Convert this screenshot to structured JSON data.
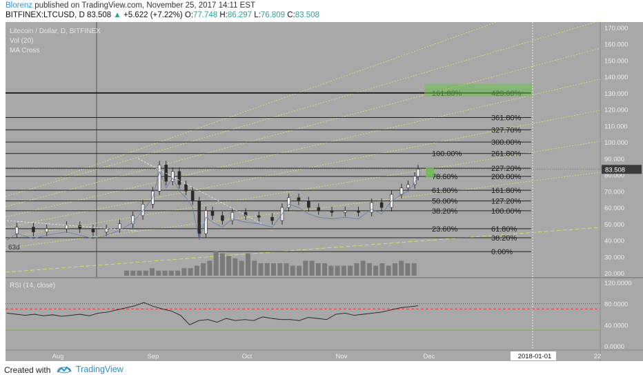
{
  "header": {
    "author": "Blorenz",
    "published": " published on TradingView.com, November 25, 2017 14:11 EST",
    "symbol": "BITFINEX:LTCUSD, D",
    "last": "83.508",
    "change": "+5.622 (+7.22%)",
    "o_label": "O:",
    "o_val": "77.748",
    "h_label": "H:",
    "h_val": "86.297",
    "l_label": "L:",
    "l_val": "76.809",
    "c_label": "C:",
    "c_val": "83.508"
  },
  "legend": [
    "Litecoin / Dollar, D, BITFINEX",
    "Vol (20)",
    "MA Cross"
  ],
  "rsi_label": "RSI (14, close)",
  "label_63d": "63d",
  "footer": {
    "created": "Created with",
    "brand": "TradingView"
  },
  "colors": {
    "panel": "#a8a8a8",
    "fib_yellow": "#e8e65a",
    "candle": "#2b2b2b",
    "rsi_red": "#e53935",
    "rsi_green": "#7cb342"
  },
  "chart_data": {
    "type": "candlestick",
    "price_ticks": [
      "170.000",
      "160.000",
      "150.000",
      "140.000",
      "130.000",
      "120.000",
      "110.000",
      "100.000",
      "90.000",
      "80.000",
      "70.000",
      "60.000",
      "50.000",
      "40.000",
      "30.000",
      "20.000"
    ],
    "ylim": [
      20,
      170
    ],
    "current_price": "83.508",
    "x_ticks": [
      "Aug",
      "Sep",
      "Oct",
      "Nov",
      "Dec",
      "2018-01-01",
      "22"
    ],
    "fib_levels": [
      {
        "label": "423.60%",
        "price": 130
      },
      {
        "label": "161.80%",
        "price": 130
      },
      {
        "label": "361.80%",
        "price": 115
      },
      {
        "label": "327.70%",
        "price": 107.5
      },
      {
        "label": "300.00%",
        "price": 100
      },
      {
        "label": "261.80%",
        "price": 93
      },
      {
        "label": "100.00%",
        "price": 93
      },
      {
        "label": "227.20%",
        "price": 84
      },
      {
        "label": "200.00%",
        "price": 79
      },
      {
        "label": "78.60%",
        "price": 79
      },
      {
        "label": "161.80%",
        "price": 70.5
      },
      {
        "label": "61.80%",
        "price": 70.5
      },
      {
        "label": "127.20%",
        "price": 64
      },
      {
        "label": "50.00%",
        "price": 64
      },
      {
        "label": "100.00%",
        "price": 58
      },
      {
        "label": "38.20%",
        "price": 58
      },
      {
        "label": "61.80%",
        "price": 47
      },
      {
        "label": "23.60%",
        "price": 47
      },
      {
        "label": "38.20%",
        "price": 41.5
      },
      {
        "label": "0.00%",
        "price": 33
      }
    ],
    "price_series": [
      {
        "t": 0,
        "v": 44
      },
      {
        "t": 3,
        "v": 48
      },
      {
        "t": 8,
        "v": 45
      },
      {
        "t": 12,
        "v": 47
      },
      {
        "t": 18,
        "v": 49
      },
      {
        "t": 22,
        "v": 47
      },
      {
        "t": 26,
        "v": 45
      },
      {
        "t": 30,
        "v": 47
      },
      {
        "t": 34,
        "v": 50
      },
      {
        "t": 38,
        "v": 55
      },
      {
        "t": 41,
        "v": 62
      },
      {
        "t": 44,
        "v": 70
      },
      {
        "t": 46,
        "v": 86
      },
      {
        "t": 48,
        "v": 76
      },
      {
        "t": 50,
        "v": 82
      },
      {
        "t": 52,
        "v": 74
      },
      {
        "t": 54,
        "v": 70
      },
      {
        "t": 56,
        "v": 64
      },
      {
        "t": 58,
        "v": 44
      },
      {
        "t": 60,
        "v": 58
      },
      {
        "t": 62,
        "v": 55
      },
      {
        "t": 65,
        "v": 52
      },
      {
        "t": 68,
        "v": 57
      },
      {
        "t": 72,
        "v": 55
      },
      {
        "t": 76,
        "v": 54
      },
      {
        "t": 80,
        "v": 52
      },
      {
        "t": 83,
        "v": 60
      },
      {
        "t": 85,
        "v": 66
      },
      {
        "t": 88,
        "v": 64
      },
      {
        "t": 91,
        "v": 60
      },
      {
        "t": 94,
        "v": 58
      },
      {
        "t": 98,
        "v": 57
      },
      {
        "t": 102,
        "v": 58
      },
      {
        "t": 106,
        "v": 57
      },
      {
        "t": 110,
        "v": 63
      },
      {
        "t": 113,
        "v": 60
      },
      {
        "t": 116,
        "v": 68
      },
      {
        "t": 119,
        "v": 72
      },
      {
        "t": 121,
        "v": 74
      },
      {
        "t": 123,
        "v": 79
      },
      {
        "t": 124,
        "v": 83.5
      }
    ],
    "volume_series": [
      2,
      2,
      2,
      2,
      3,
      2,
      2,
      2,
      2,
      3,
      3,
      4,
      5,
      6,
      10,
      9,
      8,
      7,
      6,
      9,
      6,
      5,
      5,
      5,
      5,
      5,
      4,
      4,
      6,
      6,
      5,
      5,
      4,
      4,
      4,
      4,
      5,
      6,
      5,
      4,
      5,
      4,
      5,
      6,
      5,
      5
    ],
    "rsi_ticks": [
      "120.0000",
      "80.0000",
      "40.0000",
      "0.0000"
    ],
    "rsi_lim": [
      0,
      120
    ],
    "rsi_levels": {
      "upper": 70,
      "lower": 30
    },
    "rsi_series": [
      62,
      60,
      58,
      60,
      57,
      59,
      56,
      58,
      60,
      57,
      62,
      64,
      68,
      72,
      76,
      82,
      75,
      70,
      66,
      58,
      40,
      48,
      50,
      45,
      52,
      48,
      50,
      48,
      55,
      52,
      50,
      50,
      48,
      54,
      52,
      50,
      60,
      62,
      58,
      60,
      62,
      64,
      68,
      72,
      74,
      76
    ]
  }
}
